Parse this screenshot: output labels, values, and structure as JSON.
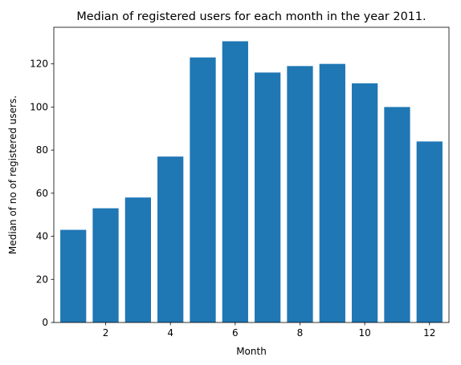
{
  "chart_data": {
    "type": "bar",
    "title": "Median of registered users for each month in the year 2011.",
    "xlabel": "Month",
    "ylabel": "Median of no of registered users.",
    "categories": [
      1,
      2,
      3,
      4,
      5,
      6,
      7,
      8,
      9,
      10,
      11,
      12
    ],
    "values": [
      43,
      53,
      58,
      77,
      123,
      130.5,
      116,
      119,
      120,
      111,
      100,
      84
    ],
    "xlim": [
      0.4,
      12.6
    ],
    "ylim": [
      0,
      137
    ],
    "xticks": [
      2,
      4,
      6,
      8,
      10,
      12
    ],
    "yticks": [
      0,
      20,
      40,
      60,
      80,
      100,
      120
    ],
    "bar_color": "#1f77b4",
    "grid": false,
    "legend": "none"
  }
}
